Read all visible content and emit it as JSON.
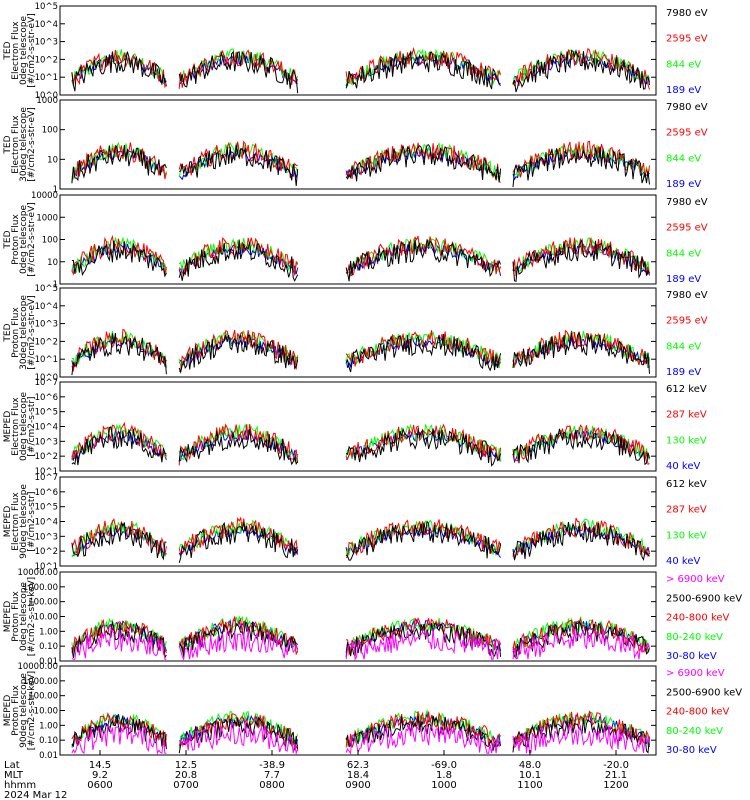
{
  "colors": {
    "blue": "#0000ff",
    "red": "#ff0000",
    "green": "#00ff00",
    "black": "#000000",
    "magenta": "#ff00ff"
  },
  "chart_data": [
    {
      "type": "line",
      "ylabel": [
        "TED",
        "Electron Flux",
        "0deg telescope",
        "[#/cm2-s-str-eV]"
      ],
      "scale": "log",
      "ylim_exp": [
        0,
        5
      ],
      "ticks": [
        "10^0",
        "10^1",
        "10^2",
        "10^3",
        "10^4",
        "10^5"
      ],
      "legend": [
        {
          "name": "7980 eV",
          "color": "#000000"
        },
        {
          "name": "2595 eV",
          "color": "#ff0000"
        },
        {
          "name": "844 eV",
          "color": "#00ff00"
        },
        {
          "name": "189 eV",
          "color": "#0000ff"
        }
      ]
    },
    {
      "type": "line",
      "ylabel": [
        "TED",
        "Electron Flux",
        "30deg telescope",
        "[#/cm2-s-str-eV]"
      ],
      "scale": "log",
      "ylim_exp": [
        0,
        3.5
      ],
      "ticks": [
        "1",
        "10",
        "100",
        "1000"
      ],
      "legend": [
        {
          "name": "7980 eV",
          "color": "#000000"
        },
        {
          "name": "2595 eV",
          "color": "#ff0000"
        },
        {
          "name": "844 eV",
          "color": "#00ff00"
        },
        {
          "name": "189 eV",
          "color": "#0000ff"
        }
      ]
    },
    {
      "type": "line",
      "ylabel": [
        "TED",
        "Proton Flux",
        "0deg telescope",
        "[#/cm2-s-str-eV]"
      ],
      "scale": "log",
      "ylim_exp": [
        0,
        4
      ],
      "ticks": [
        "1",
        "10",
        "100",
        "1000",
        "10000"
      ],
      "legend": [
        {
          "name": "7980 eV",
          "color": "#000000"
        },
        {
          "name": "2595 eV",
          "color": "#ff0000"
        },
        {
          "name": "844 eV",
          "color": "#00ff00"
        },
        {
          "name": "189 eV",
          "color": "#0000ff"
        }
      ]
    },
    {
      "type": "line",
      "ylabel": [
        "TED",
        "Proton Flux",
        "30deg telescope",
        "[#/cm2-s-str-eV]"
      ],
      "scale": "log",
      "ylim_exp": [
        0,
        5
      ],
      "ticks": [
        "10^0",
        "10^1",
        "10^2",
        "10^3",
        "10^4",
        "10^5"
      ],
      "legend": [
        {
          "name": "7980 eV",
          "color": "#000000"
        },
        {
          "name": "2595 eV",
          "color": "#ff0000"
        },
        {
          "name": "844 eV",
          "color": "#00ff00"
        },
        {
          "name": "189 eV",
          "color": "#0000ff"
        }
      ]
    },
    {
      "type": "line",
      "ylabel": [
        "MEPED",
        "Electron Flux",
        "0deg telescope",
        "[#/cm2-s-str]"
      ],
      "scale": "log",
      "ylim_exp": [
        1,
        7
      ],
      "ticks": [
        "10^1",
        "10^2",
        "10^3",
        "10^4",
        "10^5",
        "10^6",
        "10^7"
      ],
      "legend": [
        {
          "name": "612 keV",
          "color": "#000000"
        },
        {
          "name": "287 keV",
          "color": "#ff0000"
        },
        {
          "name": "130 keV",
          "color": "#00ff00"
        },
        {
          "name": "40 keV",
          "color": "#0000ff"
        }
      ]
    },
    {
      "type": "line",
      "ylabel": [
        "MEPED",
        "Electron Flux",
        "90deg telescope",
        "[#/cm2-s-str]"
      ],
      "scale": "log",
      "ylim_exp": [
        1,
        7
      ],
      "ticks": [
        "10^1",
        "10^2",
        "10^3",
        "10^4",
        "10^5",
        "10^6",
        "10^7"
      ],
      "legend": [
        {
          "name": "612 keV",
          "color": "#000000"
        },
        {
          "name": "287 keV",
          "color": "#ff0000"
        },
        {
          "name": "130 keV",
          "color": "#00ff00"
        },
        {
          "name": "40 keV",
          "color": "#0000ff"
        }
      ]
    },
    {
      "type": "line",
      "ylabel": [
        "MEPED",
        "Proton Flux",
        "0deg telescope",
        "[#/cm2-s-str-keV]"
      ],
      "scale": "log",
      "ylim_exp": [
        -2,
        4.3
      ],
      "ticks": [
        "0.01",
        "0.10",
        "1.00",
        "10.00",
        "100.00",
        "1000.00",
        "10000.00"
      ],
      "legend": [
        {
          "name": "> 6900 keV",
          "color": "#ff00ff"
        },
        {
          "name": "2500-6900 keV",
          "color": "#000000"
        },
        {
          "name": "240-800 keV",
          "color": "#ff0000"
        },
        {
          "name": "80-240 keV",
          "color": "#00ff00"
        },
        {
          "name": "30-80 keV",
          "color": "#0000ff"
        }
      ]
    },
    {
      "type": "line",
      "ylabel": [
        "MEPED",
        "Proton Flux",
        "90deg telescope",
        "[#/cm2-s-str-keV]"
      ],
      "scale": "log",
      "ylim_exp": [
        -2,
        4.3
      ],
      "ticks": [
        "0.01",
        "0.10",
        "1.00",
        "10.00",
        "100.00",
        "1000.00",
        "10000.00"
      ],
      "legend": [
        {
          "name": "> 6900 keV",
          "color": "#ff00ff"
        },
        {
          "name": "2500-6900 keV",
          "color": "#000000"
        },
        {
          "name": "240-800 keV",
          "color": "#ff0000"
        },
        {
          "name": "80-240 keV",
          "color": "#00ff00"
        },
        {
          "name": "30-80 keV",
          "color": "#0000ff"
        }
      ]
    }
  ],
  "x_axis": {
    "row_labels": [
      "Lat",
      "MLT",
      "hhmm"
    ],
    "columns": [
      {
        "lat": "14.5",
        "mlt": "9.2",
        "hhmm": "0600"
      },
      {
        "lat": "12.5",
        "mlt": "20.8",
        "hhmm": "0700"
      },
      {
        "lat": "-38.9",
        "mlt": "7.7",
        "hhmm": "0800"
      },
      {
        "lat": "62.3",
        "mlt": "18.4",
        "hhmm": "0900"
      },
      {
        "lat": "-69.0",
        "mlt": "1.8",
        "hhmm": "1000"
      },
      {
        "lat": "48.0",
        "mlt": "10.1",
        "hhmm": "1100"
      },
      {
        "lat": "-20.0",
        "mlt": "21.1",
        "hhmm": "1200"
      }
    ],
    "date": "2024 Mar 12"
  }
}
